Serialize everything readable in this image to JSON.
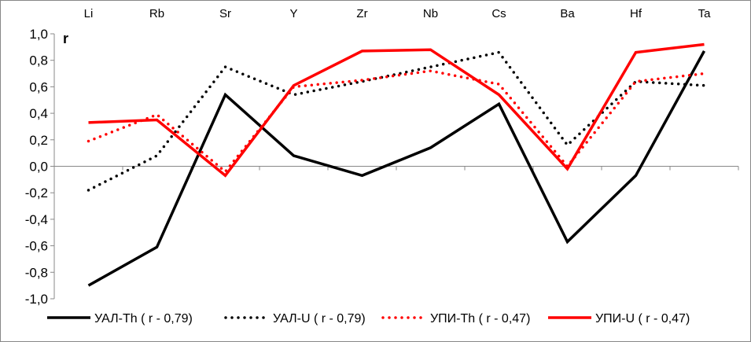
{
  "chart_data": {
    "type": "line",
    "ylabel": "r",
    "categories": [
      "Li",
      "Rb",
      "Sr",
      "Y",
      "Zr",
      "Nb",
      "Cs",
      "Ba",
      "Hf",
      "Ta"
    ],
    "ylim": [
      -1.0,
      1.0
    ],
    "yticks": [
      "1,0",
      "0,8",
      "0,6",
      "0,4",
      "0,2",
      "0,0",
      "-0,2",
      "-0,4",
      "-0,6",
      "-0,8",
      "-1,0"
    ],
    "grid": false,
    "legend_position": "bottom",
    "series": [
      {
        "name": "УАЛ-Th ( r - 0,79)",
        "color": "#000000",
        "style": "solid",
        "values": [
          -0.9,
          -0.61,
          0.54,
          0.08,
          -0.07,
          0.14,
          0.47,
          -0.57,
          -0.07,
          0.87
        ]
      },
      {
        "name": "УАЛ-U ( r - 0,79)",
        "color": "#000000",
        "style": "dotted",
        "values": [
          -0.18,
          0.08,
          0.75,
          0.54,
          0.64,
          0.75,
          0.86,
          0.16,
          0.64,
          0.61
        ]
      },
      {
        "name": "УПИ-Th ( r - 0,47)",
        "color": "#ff0000",
        "style": "dotted",
        "values": [
          0.19,
          0.39,
          -0.04,
          0.6,
          0.65,
          0.72,
          0.62,
          0.0,
          0.64,
          0.7
        ]
      },
      {
        "name": "УПИ-U ( r - 0,47)",
        "color": "#ff0000",
        "style": "solid",
        "values": [
          0.33,
          0.35,
          -0.07,
          0.61,
          0.87,
          0.88,
          0.54,
          -0.02,
          0.86,
          0.92
        ]
      }
    ]
  }
}
